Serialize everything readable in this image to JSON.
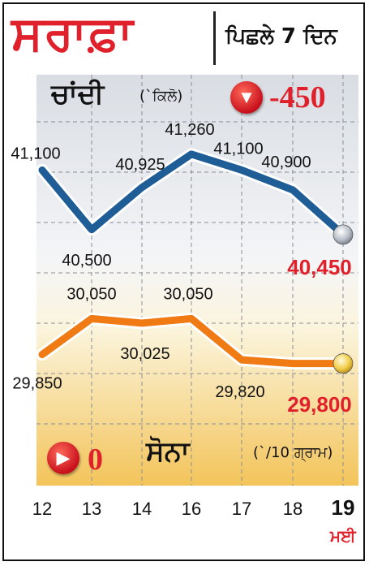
{
  "header": {
    "title": "ਸਰਾਫ਼ਾ",
    "subtitle": "ਪਿਛਲੇ 7 ਦਿਨ"
  },
  "silver": {
    "title": "ਚਾਂਦੀ",
    "unit": "(`ਕਿਲੋ)",
    "change": "-450",
    "change_icon": "down-arrow-icon"
  },
  "gold": {
    "title": "ਸੋਨਾ",
    "unit": "(`/10 ਗ੍ਰਾਮ)",
    "change": "0",
    "change_icon": "right-arrow-icon"
  },
  "month_label": "ਮਈ",
  "colors": {
    "title_red": "#e0202a",
    "silver_line": "#1f5d96",
    "gold_line": "#f07a14",
    "value_red": "#e0202a"
  },
  "chart_data": {
    "type": "line",
    "x": [
      "12",
      "13",
      "14",
      "16",
      "17",
      "18",
      "19"
    ],
    "series": [
      {
        "name": "ਚਾਂਦੀ",
        "values": [
          41100,
          40500,
          40925,
          41260,
          41100,
          40900,
          40450
        ],
        "labels": [
          "41,100",
          "40,500",
          "40,925",
          "41,260",
          "41,100",
          "40,900",
          "40,450"
        ]
      },
      {
        "name": "ਸੋਨਾ",
        "values": [
          29850,
          30050,
          30025,
          30050,
          29820,
          29800,
          29800
        ],
        "labels": [
          "29,850",
          "30,050",
          "30,025",
          "30,050",
          "29,820",
          "",
          "29,800"
        ]
      }
    ],
    "grid": true
  }
}
